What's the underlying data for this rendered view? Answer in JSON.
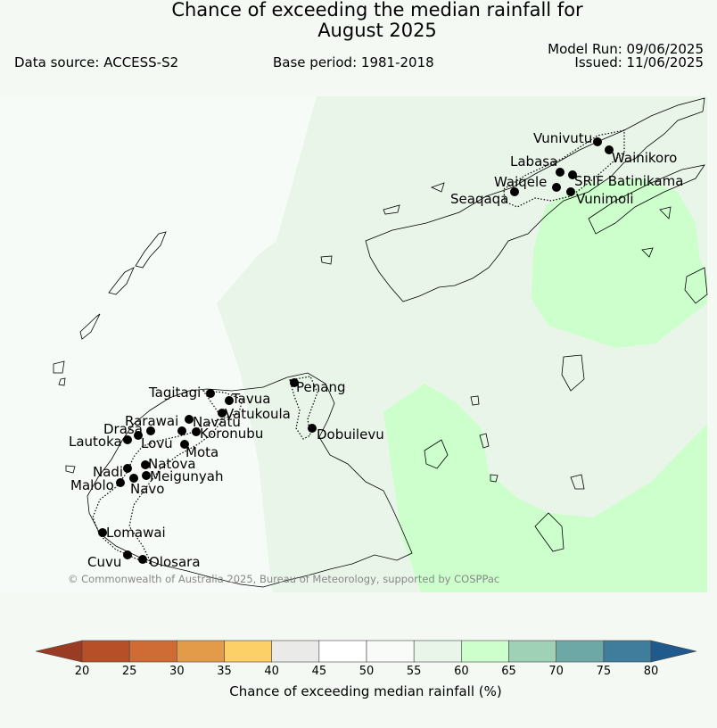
{
  "header": {
    "title_line1": "Chance of exceeding the median rainfall for",
    "title_line2": "August 2025",
    "data_source": "Data source: ACCESS-S2",
    "base_period": "Base period: 1981-2018",
    "model_run": "Model Run: 09/06/2025",
    "issued": "Issued: 11/06/2025"
  },
  "map": {
    "copyright": "© Commonwealth of Australia 2025, Bureau of Meteorology, supported by COSPPac",
    "colors": {
      "ocean_45_55": "#f7fbf7",
      "band_55_60": "#eaf5ea",
      "band_60_65": "#ccffcc",
      "land_outline": "#000000",
      "station": "#000000"
    },
    "stations": [
      "Vunivutu",
      "Wainikoro",
      "Labasa",
      "Waiqele",
      "SRIF Batinikama",
      "Seaqaqa",
      "Vunimoli",
      "Penang",
      "Tagitagi",
      "Tavua",
      "Vatukoula",
      "Rarawai",
      "Navatu",
      "Drasa",
      "Koronubu",
      "Lautoka",
      "Lovu",
      "Mota",
      "Dobuilevu",
      "Natova",
      "Nadi",
      "Meigunyah",
      "Malolo",
      "Navo",
      "Lomawai",
      "Cuvu",
      "Olosara"
    ]
  },
  "colorbar": {
    "title": "Chance of exceeding median rainfall (%)",
    "ticks": [
      "20",
      "25",
      "30",
      "35",
      "40",
      "45",
      "50",
      "55",
      "60",
      "65",
      "70",
      "75",
      "80"
    ],
    "colors": [
      "#9a3c23",
      "#b74f29",
      "#cf6c35",
      "#e39a49",
      "#fdcf67",
      "#eaeae8",
      "#ffffff",
      "#f8fbf8",
      "#e9f5e9",
      "#ccffcc",
      "#9ed1b6",
      "#6ea8a6",
      "#407c9c",
      "#205a8c"
    ]
  }
}
